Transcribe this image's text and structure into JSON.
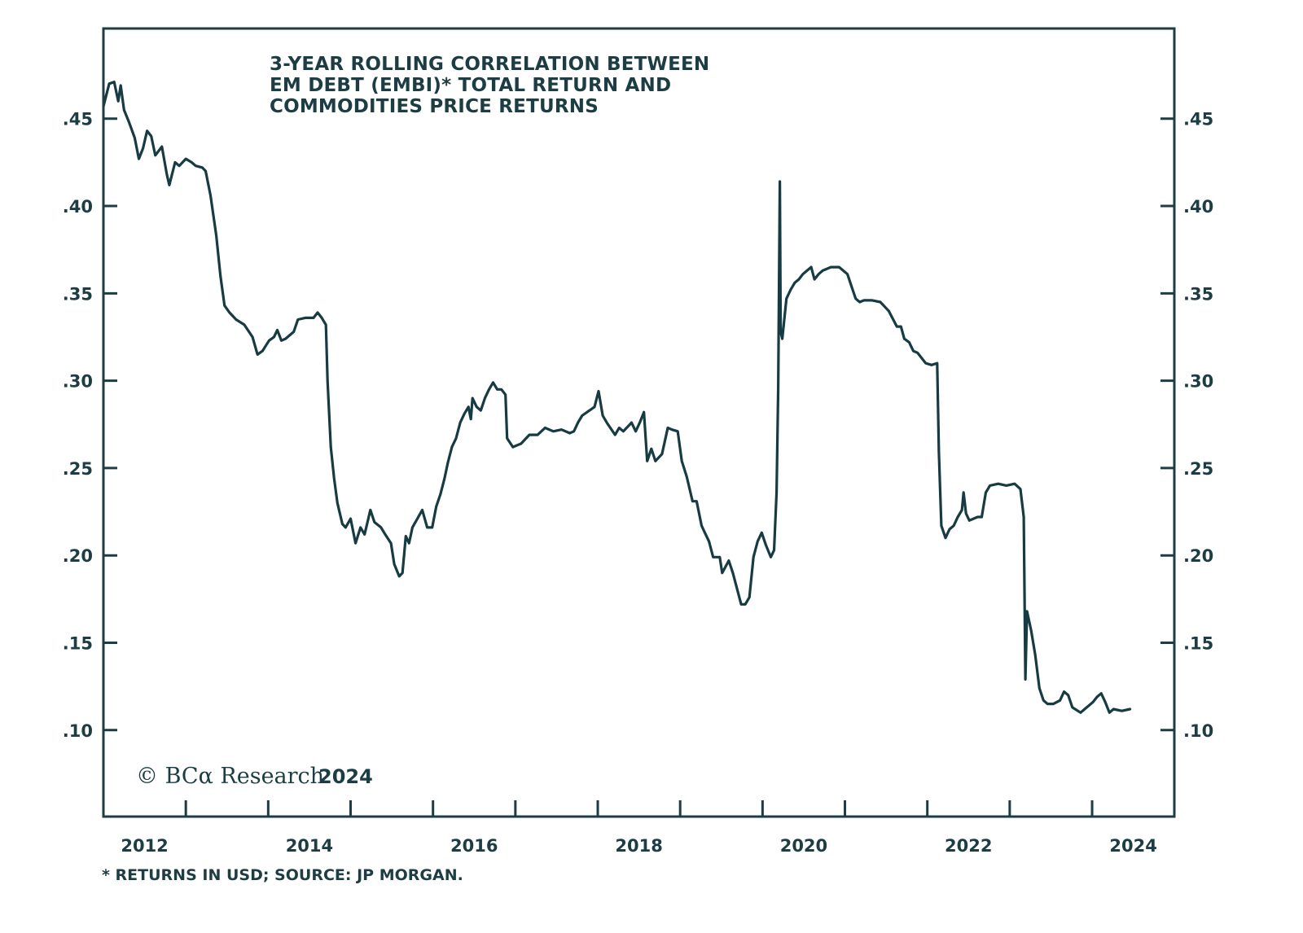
{
  "chart_data": {
    "type": "line",
    "title": "3-YEAR ROLLING CORRELATION BETWEEN EM DEBT (EMBI)* TOTAL RETURN AND COMMODITIES PRICE RETURNS",
    "title_lines": [
      "3-YEAR ROLLING CORRELATION BETWEEN",
      "EM DEBT (EMBI)* TOTAL RETURN AND",
      "COMMODITIES PRICE RETURNS"
    ],
    "xlabel": "",
    "ylabel": "",
    "xlim": [
      2012.0,
      2025.0
    ],
    "ylim": [
      0.0505,
      0.5016
    ],
    "x_ticks": [
      2013,
      2014,
      2015,
      2016,
      2017,
      2018,
      2019,
      2020,
      2021,
      2022,
      2023,
      2024
    ],
    "x_tick_labels": [
      {
        "label": "2012",
        "center": 2012.5
      },
      {
        "label": "2014",
        "center": 2014.5
      },
      {
        "label": "2016",
        "center": 2016.5
      },
      {
        "label": "2018",
        "center": 2018.5
      },
      {
        "label": "2020",
        "center": 2020.5
      },
      {
        "label": "2022",
        "center": 2022.5
      },
      {
        "label": "2024",
        "center": 2024.5
      }
    ],
    "y_ticks": [
      0.1,
      0.15,
      0.2,
      0.25,
      0.3,
      0.35,
      0.4,
      0.45
    ],
    "y_tick_labels": [
      ".10",
      ".15",
      ".20",
      ".25",
      ".30",
      ".35",
      ".40",
      ".45"
    ],
    "grid": false,
    "legend": "none",
    "series": [
      {
        "name": "3-year rolling correlation",
        "color": "#163b42",
        "points": [
          [
            2012.0,
            0.457
          ],
          [
            2012.07,
            0.47
          ],
          [
            2012.13,
            0.471
          ],
          [
            2012.18,
            0.46
          ],
          [
            2012.21,
            0.469
          ],
          [
            2012.25,
            0.455
          ],
          [
            2012.31,
            0.448
          ],
          [
            2012.38,
            0.439
          ],
          [
            2012.43,
            0.427
          ],
          [
            2012.48,
            0.433
          ],
          [
            2012.53,
            0.443
          ],
          [
            2012.58,
            0.44
          ],
          [
            2012.63,
            0.429
          ],
          [
            2012.71,
            0.434
          ],
          [
            2012.77,
            0.418
          ],
          [
            2012.8,
            0.412
          ],
          [
            2012.87,
            0.425
          ],
          [
            2012.92,
            0.423
          ],
          [
            2013.0,
            0.427
          ],
          [
            2013.07,
            0.425
          ],
          [
            2013.12,
            0.423
          ],
          [
            2013.2,
            0.422
          ],
          [
            2013.24,
            0.42
          ],
          [
            2013.3,
            0.406
          ],
          [
            2013.37,
            0.383
          ],
          [
            2013.42,
            0.36
          ],
          [
            2013.47,
            0.343
          ],
          [
            2013.53,
            0.339
          ],
          [
            2013.61,
            0.335
          ],
          [
            2013.71,
            0.332
          ],
          [
            2013.81,
            0.325
          ],
          [
            2013.87,
            0.315
          ],
          [
            2013.93,
            0.317
          ],
          [
            2014.01,
            0.323
          ],
          [
            2014.07,
            0.325
          ],
          [
            2014.11,
            0.329
          ],
          [
            2014.16,
            0.323
          ],
          [
            2014.21,
            0.324
          ],
          [
            2014.31,
            0.328
          ],
          [
            2014.36,
            0.335
          ],
          [
            2014.45,
            0.336
          ],
          [
            2014.55,
            0.336
          ],
          [
            2014.6,
            0.339
          ],
          [
            2014.65,
            0.336
          ],
          [
            2014.7,
            0.332
          ],
          [
            2014.72,
            0.3
          ],
          [
            2014.76,
            0.262
          ],
          [
            2014.8,
            0.244
          ],
          [
            2014.84,
            0.23
          ],
          [
            2014.9,
            0.218
          ],
          [
            2014.94,
            0.216
          ],
          [
            2015.0,
            0.221
          ],
          [
            2015.06,
            0.207
          ],
          [
            2015.12,
            0.216
          ],
          [
            2015.17,
            0.212
          ],
          [
            2015.24,
            0.226
          ],
          [
            2015.29,
            0.219
          ],
          [
            2015.37,
            0.216
          ],
          [
            2015.42,
            0.212
          ],
          [
            2015.49,
            0.207
          ],
          [
            2015.53,
            0.195
          ],
          [
            2015.59,
            0.188
          ],
          [
            2015.63,
            0.19
          ],
          [
            2015.67,
            0.211
          ],
          [
            2015.71,
            0.207
          ],
          [
            2015.75,
            0.216
          ],
          [
            2015.81,
            0.221
          ],
          [
            2015.87,
            0.226
          ],
          [
            2015.93,
            0.216
          ],
          [
            2015.99,
            0.216
          ],
          [
            2016.04,
            0.228
          ],
          [
            2016.09,
            0.235
          ],
          [
            2016.14,
            0.244
          ],
          [
            2016.18,
            0.253
          ],
          [
            2016.23,
            0.262
          ],
          [
            2016.28,
            0.267
          ],
          [
            2016.33,
            0.276
          ],
          [
            2016.38,
            0.281
          ],
          [
            2016.43,
            0.285
          ],
          [
            2016.46,
            0.278
          ],
          [
            2016.48,
            0.29
          ],
          [
            2016.53,
            0.285
          ],
          [
            2016.58,
            0.283
          ],
          [
            2016.63,
            0.29
          ],
          [
            2016.68,
            0.295
          ],
          [
            2016.73,
            0.299
          ],
          [
            2016.78,
            0.295
          ],
          [
            2016.83,
            0.295
          ],
          [
            2016.88,
            0.292
          ],
          [
            2016.9,
            0.267
          ],
          [
            2016.97,
            0.262
          ],
          [
            2017.07,
            0.264
          ],
          [
            2017.17,
            0.269
          ],
          [
            2017.27,
            0.269
          ],
          [
            2017.36,
            0.273
          ],
          [
            2017.46,
            0.271
          ],
          [
            2017.56,
            0.272
          ],
          [
            2017.66,
            0.27
          ],
          [
            2017.71,
            0.271
          ],
          [
            2017.76,
            0.276
          ],
          [
            2017.81,
            0.28
          ],
          [
            2017.96,
            0.285
          ],
          [
            2018.01,
            0.294
          ],
          [
            2018.06,
            0.28
          ],
          [
            2018.11,
            0.276
          ],
          [
            2018.21,
            0.269
          ],
          [
            2018.26,
            0.273
          ],
          [
            2018.31,
            0.271
          ],
          [
            2018.41,
            0.276
          ],
          [
            2018.46,
            0.271
          ],
          [
            2018.51,
            0.276
          ],
          [
            2018.56,
            0.282
          ],
          [
            2018.6,
            0.254
          ],
          [
            2018.65,
            0.261
          ],
          [
            2018.7,
            0.254
          ],
          [
            2018.78,
            0.258
          ],
          [
            2018.85,
            0.273
          ],
          [
            2018.9,
            0.272
          ],
          [
            2018.97,
            0.271
          ],
          [
            2019.02,
            0.254
          ],
          [
            2019.08,
            0.245
          ],
          [
            2019.15,
            0.231
          ],
          [
            2019.2,
            0.231
          ],
          [
            2019.26,
            0.217
          ],
          [
            2019.3,
            0.213
          ],
          [
            2019.35,
            0.208
          ],
          [
            2019.4,
            0.199
          ],
          [
            2019.48,
            0.199
          ],
          [
            2019.51,
            0.19
          ],
          [
            2019.59,
            0.197
          ],
          [
            2019.64,
            0.19
          ],
          [
            2019.74,
            0.172
          ],
          [
            2019.79,
            0.172
          ],
          [
            2019.84,
            0.176
          ],
          [
            2019.89,
            0.199
          ],
          [
            2019.94,
            0.208
          ],
          [
            2019.99,
            0.213
          ],
          [
            2020.04,
            0.206
          ],
          [
            2020.1,
            0.199
          ],
          [
            2020.14,
            0.203
          ],
          [
            2020.17,
            0.236
          ],
          [
            2020.19,
            0.296
          ],
          [
            2020.21,
            0.414
          ],
          [
            2020.22,
            0.328
          ],
          [
            2020.24,
            0.324
          ],
          [
            2020.29,
            0.347
          ],
          [
            2020.34,
            0.352
          ],
          [
            2020.39,
            0.356
          ],
          [
            2020.44,
            0.358
          ],
          [
            2020.49,
            0.361
          ],
          [
            2020.54,
            0.363
          ],
          [
            2020.59,
            0.365
          ],
          [
            2020.63,
            0.358
          ],
          [
            2020.68,
            0.361
          ],
          [
            2020.73,
            0.363
          ],
          [
            2020.83,
            0.365
          ],
          [
            2020.93,
            0.365
          ],
          [
            2021.03,
            0.361
          ],
          [
            2021.08,
            0.354
          ],
          [
            2021.13,
            0.347
          ],
          [
            2021.18,
            0.345
          ],
          [
            2021.23,
            0.346
          ],
          [
            2021.33,
            0.346
          ],
          [
            2021.43,
            0.345
          ],
          [
            2021.53,
            0.34
          ],
          [
            2021.63,
            0.331
          ],
          [
            2021.68,
            0.331
          ],
          [
            2021.72,
            0.324
          ],
          [
            2021.78,
            0.322
          ],
          [
            2021.83,
            0.317
          ],
          [
            2021.88,
            0.316
          ],
          [
            2021.98,
            0.31
          ],
          [
            2022.05,
            0.309
          ],
          [
            2022.12,
            0.31
          ],
          [
            2022.14,
            0.259
          ],
          [
            2022.17,
            0.217
          ],
          [
            2022.22,
            0.21
          ],
          [
            2022.27,
            0.215
          ],
          [
            2022.32,
            0.217
          ],
          [
            2022.37,
            0.222
          ],
          [
            2022.42,
            0.226
          ],
          [
            2022.44,
            0.236
          ],
          [
            2022.47,
            0.224
          ],
          [
            2022.51,
            0.22
          ],
          [
            2022.61,
            0.222
          ],
          [
            2022.66,
            0.222
          ],
          [
            2022.71,
            0.236
          ],
          [
            2022.76,
            0.24
          ],
          [
            2022.86,
            0.241
          ],
          [
            2022.96,
            0.24
          ],
          [
            2023.06,
            0.241
          ],
          [
            2023.13,
            0.238
          ],
          [
            2023.17,
            0.222
          ],
          [
            2023.19,
            0.129
          ],
          [
            2023.21,
            0.168
          ],
          [
            2023.26,
            0.157
          ],
          [
            2023.31,
            0.143
          ],
          [
            2023.36,
            0.124
          ],
          [
            2023.41,
            0.117
          ],
          [
            2023.46,
            0.115
          ],
          [
            2023.53,
            0.115
          ],
          [
            2023.61,
            0.117
          ],
          [
            2023.66,
            0.122
          ],
          [
            2023.71,
            0.12
          ],
          [
            2023.76,
            0.113
          ],
          [
            2023.86,
            0.11
          ],
          [
            2023.91,
            0.112
          ],
          [
            2023.96,
            0.114
          ],
          [
            2024.01,
            0.116
          ],
          [
            2024.06,
            0.119
          ],
          [
            2024.11,
            0.121
          ],
          [
            2024.16,
            0.116
          ],
          [
            2024.21,
            0.11
          ],
          [
            2024.26,
            0.112
          ],
          [
            2024.36,
            0.111
          ],
          [
            2024.46,
            0.112
          ]
        ]
      }
    ]
  },
  "annotations": {
    "copyright_prefix": "© BCα Research",
    "copyright_year": "2024",
    "footnote": "* RETURNS IN USD; SOURCE: JP MORGAN."
  },
  "colors": {
    "ink": "#1d3d44",
    "line": "#163b42",
    "background": "#ffffff"
  }
}
